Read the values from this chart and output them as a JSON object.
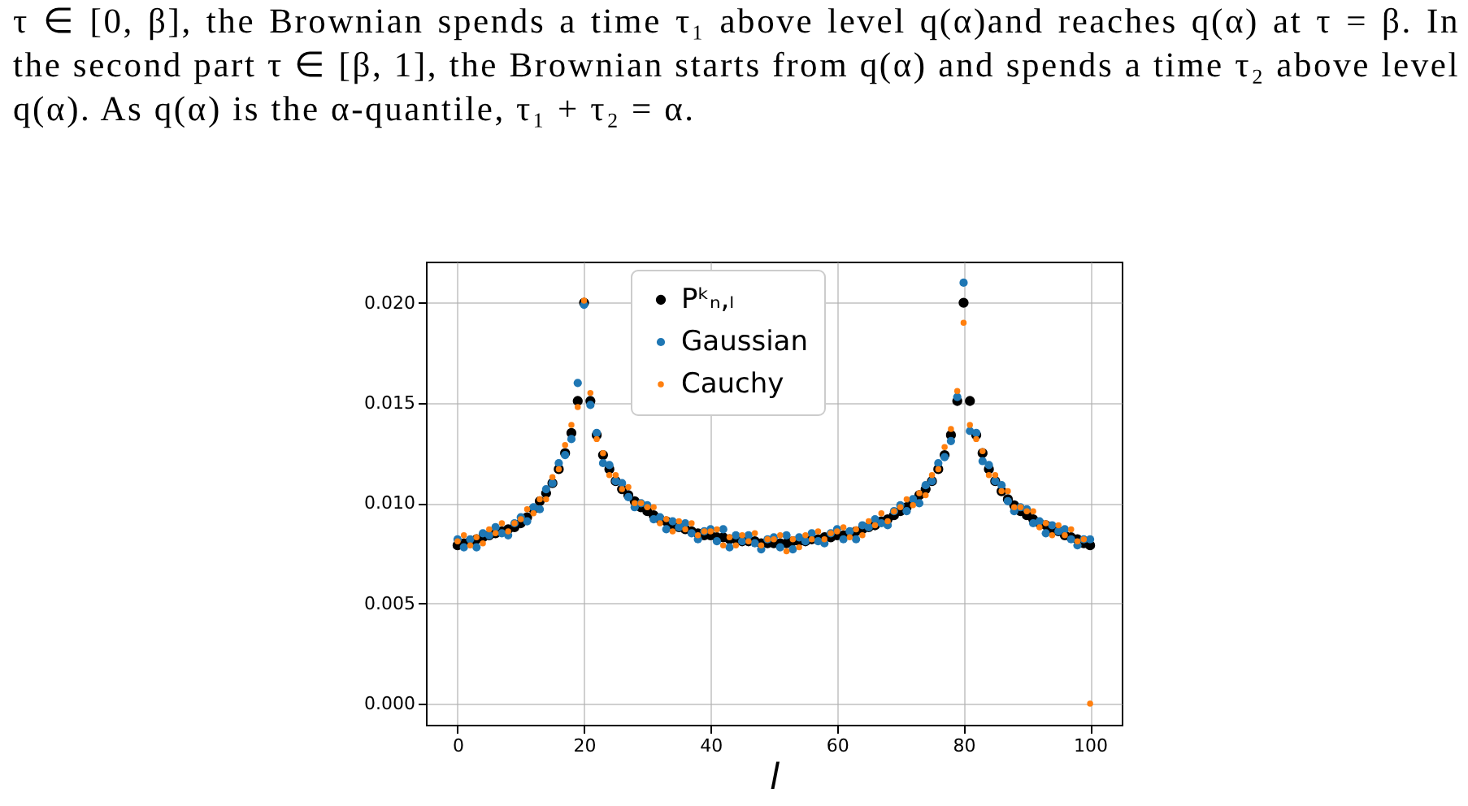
{
  "chart_data": {
    "type": "scatter",
    "annotations": [
      "τ ∈ [0, β], the Brownian spends a time τ₁ above level q(α)and reaches q(α) at τ = β. In the second part τ ∈ [β, 1], the Brownian starts from q(α) and spends a time τ₂ above level q(α). As q(α) is the α-quantile, τ₁ + τ₂ = α."
    ],
    "xlabel": "l",
    "x": [
      0,
      1,
      2,
      3,
      4,
      5,
      6,
      7,
      8,
      9,
      10,
      11,
      12,
      13,
      14,
      15,
      16,
      17,
      18,
      19,
      20,
      21,
      22,
      23,
      24,
      25,
      26,
      27,
      28,
      29,
      30,
      31,
      32,
      33,
      34,
      35,
      36,
      37,
      38,
      39,
      40,
      41,
      42,
      43,
      44,
      45,
      46,
      47,
      48,
      49,
      50,
      51,
      52,
      53,
      54,
      55,
      56,
      57,
      58,
      59,
      60,
      61,
      62,
      63,
      64,
      65,
      66,
      67,
      68,
      69,
      70,
      71,
      72,
      73,
      74,
      75,
      76,
      77,
      78,
      79,
      80,
      81,
      82,
      83,
      84,
      85,
      86,
      87,
      88,
      89,
      90,
      91,
      92,
      93,
      94,
      95,
      96,
      97,
      98,
      99,
      100
    ],
    "series": [
      {
        "name": "Pᵏₙ,ₗ",
        "color": "#000000",
        "values": [
          0.0079,
          0.008,
          0.0081,
          0.0082,
          0.0083,
          0.0084,
          0.0085,
          0.0086,
          0.0087,
          0.0088,
          0.009,
          0.0093,
          0.0097,
          0.0101,
          0.0105,
          0.011,
          0.0117,
          0.0125,
          0.0135,
          0.0151,
          0.02,
          0.0151,
          0.0134,
          0.0124,
          0.0117,
          0.0111,
          0.0107,
          0.0104,
          0.0101,
          0.0098,
          0.0096,
          0.0094,
          0.0092,
          0.0091,
          0.0089,
          0.0088,
          0.0087,
          0.0086,
          0.0085,
          0.0084,
          0.0084,
          0.0083,
          0.0083,
          0.0082,
          0.0082,
          0.0081,
          0.0081,
          0.0081,
          0.008,
          0.008,
          0.008,
          0.008,
          0.008,
          0.0081,
          0.0081,
          0.0081,
          0.0082,
          0.0082,
          0.0083,
          0.0083,
          0.0084,
          0.0084,
          0.0085,
          0.0086,
          0.0087,
          0.0088,
          0.0089,
          0.0091,
          0.0092,
          0.0094,
          0.0096,
          0.0098,
          0.0101,
          0.0104,
          0.0107,
          0.0111,
          0.0117,
          0.0124,
          0.0134,
          0.0151,
          0.02,
          0.0151,
          0.0134,
          0.0125,
          0.0117,
          0.0111,
          0.0106,
          0.0102,
          0.0099,
          0.0096,
          0.0094,
          0.0092,
          0.009,
          0.0089,
          0.0087,
          0.0086,
          0.0084,
          0.0083,
          0.0082,
          0.008,
          0.0079
        ]
      },
      {
        "name": "Gaussian",
        "color": "#1f77b4",
        "values": [
          0.0082,
          0.0078,
          0.0082,
          0.0078,
          0.0085,
          0.0084,
          0.0088,
          0.0085,
          0.0084,
          0.009,
          0.0093,
          0.0091,
          0.0098,
          0.0097,
          0.0107,
          0.011,
          0.012,
          0.0124,
          0.0132,
          0.016,
          0.0199,
          0.0149,
          0.0135,
          0.012,
          0.0119,
          0.0111,
          0.011,
          0.0103,
          0.0098,
          0.01,
          0.0099,
          0.0092,
          0.0093,
          0.0087,
          0.0091,
          0.0088,
          0.009,
          0.0085,
          0.0082,
          0.0086,
          0.0087,
          0.0081,
          0.0087,
          0.0078,
          0.0084,
          0.0081,
          0.0084,
          0.008,
          0.0077,
          0.0082,
          0.0083,
          0.0078,
          0.0084,
          0.0077,
          0.0083,
          0.0081,
          0.0085,
          0.0081,
          0.008,
          0.0085,
          0.0087,
          0.0082,
          0.0086,
          0.0082,
          0.0089,
          0.0088,
          0.0092,
          0.009,
          0.0089,
          0.0096,
          0.0099,
          0.0096,
          0.0102,
          0.01,
          0.0109,
          0.0111,
          0.012,
          0.0123,
          0.0131,
          0.0153,
          0.021,
          0.0136,
          0.0135,
          0.0121,
          0.0119,
          0.0111,
          0.0109,
          0.0101,
          0.0096,
          0.0098,
          0.0097,
          0.009,
          0.0091,
          0.0085,
          0.0089,
          0.0086,
          0.0087,
          0.0082,
          0.0079,
          0.0082,
          0.0082
        ]
      },
      {
        "name": "Cauchy",
        "color": "#ff7f0e",
        "values": [
          0.0081,
          0.0084,
          0.0079,
          0.0083,
          0.008,
          0.0087,
          0.0085,
          0.009,
          0.0086,
          0.009,
          0.0092,
          0.0097,
          0.0095,
          0.0102,
          0.0102,
          0.0113,
          0.0117,
          0.0129,
          0.0139,
          0.0148,
          0.0201,
          0.0155,
          0.0132,
          0.0125,
          0.0114,
          0.0114,
          0.0107,
          0.0108,
          0.01,
          0.01,
          0.0098,
          0.0098,
          0.009,
          0.0092,
          0.0086,
          0.0091,
          0.0087,
          0.009,
          0.0084,
          0.0086,
          0.0086,
          0.0087,
          0.0079,
          0.0083,
          0.0079,
          0.0084,
          0.0081,
          0.0085,
          0.0079,
          0.0082,
          0.0082,
          0.0084,
          0.0076,
          0.0082,
          0.0078,
          0.0084,
          0.0082,
          0.0086,
          0.0082,
          0.0085,
          0.0086,
          0.0088,
          0.0083,
          0.0087,
          0.0084,
          0.0091,
          0.0089,
          0.0095,
          0.0091,
          0.0096,
          0.0098,
          0.0102,
          0.0099,
          0.0105,
          0.0104,
          0.0114,
          0.0117,
          0.0128,
          0.0137,
          0.0156,
          0.019,
          0.0139,
          0.0132,
          0.0126,
          0.0114,
          0.0114,
          0.0106,
          0.0106,
          0.0098,
          0.0098,
          0.0096,
          0.0096,
          0.0088,
          0.009,
          0.0084,
          0.0089,
          0.0084,
          0.0087,
          0.0081,
          0.0082,
          0.0
        ]
      }
    ],
    "xlim": [
      -5,
      105
    ],
    "ylim": [
      -0.00105,
      0.02205
    ],
    "xticks": [
      0,
      20,
      40,
      60,
      80,
      100
    ],
    "yticks": [
      {
        "value": 0,
        "label": "0.000"
      },
      {
        "value": 0.005,
        "label": "0.005"
      },
      {
        "value": 0.01,
        "label": "0.010"
      },
      {
        "value": 0.015,
        "label": "0.015"
      },
      {
        "value": 0.02,
        "label": "0.020"
      }
    ],
    "grid": true,
    "legend": "top",
    "marker": "circle"
  }
}
